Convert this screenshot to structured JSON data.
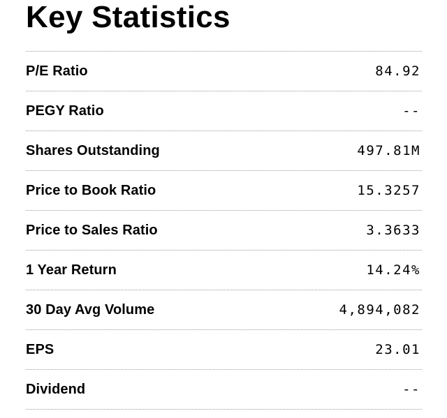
{
  "title": "Key Statistics",
  "stats": [
    {
      "label": "P/E Ratio",
      "value": "84.92"
    },
    {
      "label": "PEGY Ratio",
      "value": "--"
    },
    {
      "label": "Shares Outstanding",
      "value": "497.81M"
    },
    {
      "label": "Price to Book Ratio",
      "value": "15.3257"
    },
    {
      "label": "Price to Sales Ratio",
      "value": "3.3633"
    },
    {
      "label": "1 Year Return",
      "value": "14.24%"
    },
    {
      "label": "30 Day Avg Volume",
      "value": "4,894,082"
    },
    {
      "label": "EPS",
      "value": "23.01"
    },
    {
      "label": "Dividend",
      "value": "--"
    }
  ]
}
